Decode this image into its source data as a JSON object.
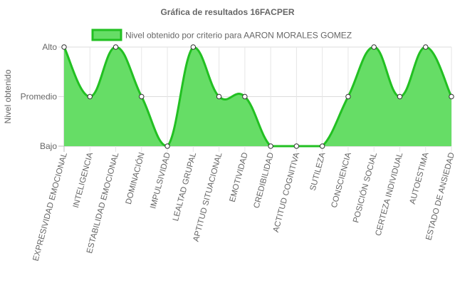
{
  "chart_data": {
    "type": "area",
    "title": "Gráfica de resultados 16FACPER",
    "ylabel": "Nivel obtenido",
    "xlabel": "",
    "y_levels": [
      "Bajo",
      "Promedio",
      "Alto"
    ],
    "ylim": [
      1,
      3
    ],
    "grid": true,
    "legend_position": "top",
    "categories": [
      "EXPRESIVIDAD EMOCIONAL",
      "INTELIGENCIA",
      "ESTABILIDAD EMOCIONAL",
      "DOMINACIÓN",
      "IMPULSIVIDAD",
      "LEALTAD GRUPAL",
      "APTITUD SITUACIONAL",
      "EMOTIVIDAD",
      "CREDIBILIDAD",
      "ACTITUD COGNITIVA",
      "SUTILEZA",
      "CONSCIENCIA",
      "POSICIÓN SOCIAL",
      "CERTEZA INDIVIDUAL",
      "AUTOESTIMA",
      "ESTADO DE ANSIEDAD"
    ],
    "series": [
      {
        "name": "Nivel obtenido por criterio para AARON MORALES GOMEZ",
        "values": [
          3,
          2,
          3,
          2,
          1,
          3,
          2,
          2,
          1,
          1,
          1,
          2,
          3,
          2,
          3,
          2
        ],
        "line_color": "#22c022",
        "fill_color": "#66dd66"
      }
    ]
  }
}
